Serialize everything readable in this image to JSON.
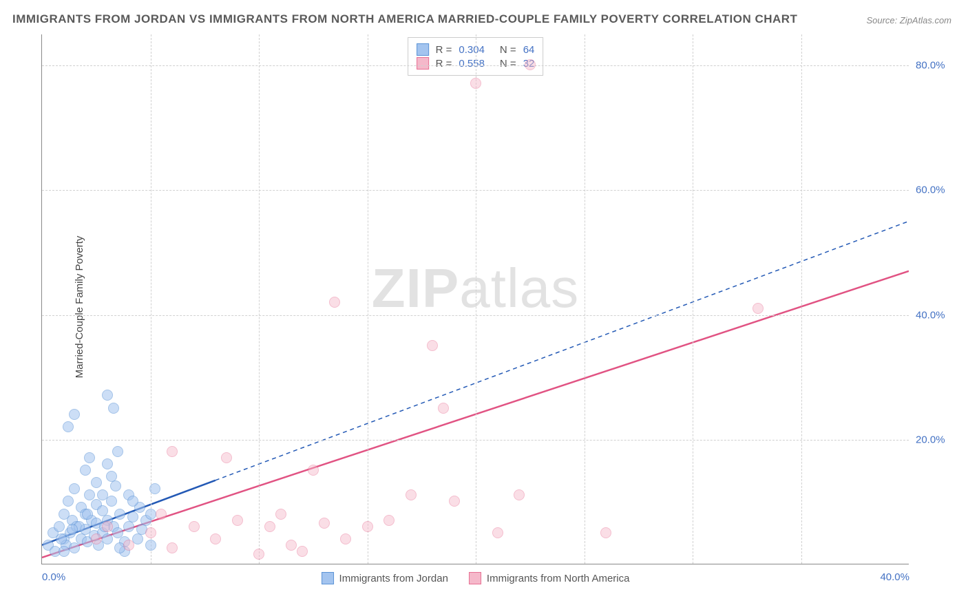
{
  "title": "IMMIGRANTS FROM JORDAN VS IMMIGRANTS FROM NORTH AMERICA MARRIED-COUPLE FAMILY POVERTY CORRELATION CHART",
  "source": "Source: ZipAtlas.com",
  "ylabel": "Married-Couple Family Poverty",
  "watermark_zip": "ZIP",
  "watermark_atlas": "atlas",
  "xlim": [
    0,
    40
  ],
  "ylim": [
    0,
    85
  ],
  "xticks": [
    {
      "v": 0,
      "label": "0.0%"
    },
    {
      "v": 40,
      "label": "40.0%"
    }
  ],
  "yticks": [
    {
      "v": 20,
      "label": "20.0%"
    },
    {
      "v": 40,
      "label": "40.0%"
    },
    {
      "v": 60,
      "label": "60.0%"
    },
    {
      "v": 80,
      "label": "80.0%"
    }
  ],
  "xgrid": [
    5,
    10,
    15,
    20,
    25,
    30,
    35
  ],
  "series": [
    {
      "key": "jordan",
      "name": "Immigrants from Jordan",
      "fill": "#a3c4ef",
      "stroke": "#5b93d6",
      "fill_opacity": 0.55,
      "line_color": "#2359b5",
      "line_dash": "none",
      "R": "0.304",
      "N": "64",
      "reg": {
        "x1": 0,
        "y1": 3,
        "x2": 40,
        "y2": 55,
        "solid_until_x": 8
      },
      "points": [
        [
          0.3,
          3
        ],
        [
          0.5,
          5
        ],
        [
          0.6,
          2
        ],
        [
          0.8,
          6
        ],
        [
          1.0,
          4
        ],
        [
          1.0,
          8
        ],
        [
          1.1,
          3
        ],
        [
          1.2,
          10
        ],
        [
          1.3,
          5
        ],
        [
          1.4,
          7
        ],
        [
          1.5,
          2.5
        ],
        [
          1.5,
          12
        ],
        [
          1.6,
          6
        ],
        [
          1.8,
          4
        ],
        [
          1.8,
          9
        ],
        [
          2.0,
          5.5
        ],
        [
          2.0,
          8
        ],
        [
          2.1,
          3.5
        ],
        [
          2.2,
          11
        ],
        [
          2.3,
          7
        ],
        [
          2.4,
          4.5
        ],
        [
          2.5,
          6.5
        ],
        [
          2.5,
          9.5
        ],
        [
          2.6,
          3
        ],
        [
          2.8,
          5
        ],
        [
          2.8,
          8.5
        ],
        [
          3.0,
          7
        ],
        [
          3.0,
          4
        ],
        [
          3.2,
          10
        ],
        [
          3.3,
          6
        ],
        [
          3.4,
          12.5
        ],
        [
          3.5,
          5
        ],
        [
          3.6,
          8
        ],
        [
          3.8,
          3.5
        ],
        [
          3.8,
          2
        ],
        [
          4.0,
          6
        ],
        [
          4.0,
          11
        ],
        [
          4.2,
          7.5
        ],
        [
          4.4,
          4
        ],
        [
          4.5,
          9
        ],
        [
          4.6,
          5.5
        ],
        [
          4.8,
          7
        ],
        [
          5.0,
          8
        ],
        [
          5.0,
          3
        ],
        [
          5.2,
          12
        ],
        [
          1.2,
          22
        ],
        [
          1.5,
          24
        ],
        [
          2.0,
          15
        ],
        [
          2.2,
          17
        ],
        [
          2.5,
          13
        ],
        [
          3.0,
          16
        ],
        [
          3.2,
          14
        ],
        [
          3.5,
          18
        ],
        [
          3.0,
          27
        ],
        [
          3.3,
          25
        ],
        [
          1.0,
          2
        ],
        [
          2.8,
          11
        ],
        [
          3.6,
          2.5
        ],
        [
          4.2,
          10
        ],
        [
          1.7,
          6
        ],
        [
          0.9,
          4
        ],
        [
          1.4,
          5.5
        ],
        [
          2.1,
          8
        ],
        [
          2.9,
          6
        ]
      ]
    },
    {
      "key": "north_america",
      "name": "Immigrants from North America",
      "fill": "#f5b8ca",
      "stroke": "#e76f93",
      "fill_opacity": 0.45,
      "line_color": "#e15383",
      "line_dash": "none",
      "R": "0.558",
      "N": "32",
      "reg": {
        "x1": 0,
        "y1": 1,
        "x2": 40,
        "y2": 47,
        "solid_until_x": 40
      },
      "points": [
        [
          2.5,
          4
        ],
        [
          3.0,
          6
        ],
        [
          4.0,
          3
        ],
        [
          5.0,
          5
        ],
        [
          5.5,
          8
        ],
        [
          6.0,
          2.5
        ],
        [
          6.0,
          18
        ],
        [
          7.0,
          6
        ],
        [
          8.0,
          4
        ],
        [
          8.5,
          17
        ],
        [
          9.0,
          7
        ],
        [
          10.0,
          1.5
        ],
        [
          10.5,
          6
        ],
        [
          11.0,
          8
        ],
        [
          12.0,
          2
        ],
        [
          12.5,
          15
        ],
        [
          13.0,
          6.5
        ],
        [
          13.5,
          42
        ],
        [
          14.0,
          4
        ],
        [
          16.0,
          7
        ],
        [
          17.0,
          11
        ],
        [
          18.0,
          35
        ],
        [
          18.5,
          25
        ],
        [
          19.0,
          10
        ],
        [
          20.0,
          77
        ],
        [
          21.0,
          5
        ],
        [
          22.0,
          11
        ],
        [
          22.5,
          80
        ],
        [
          26.0,
          5
        ],
        [
          33.0,
          41
        ],
        [
          15.0,
          6
        ],
        [
          11.5,
          3
        ]
      ]
    }
  ],
  "grid_color": "#d0d0d0",
  "background_color": "#ffffff",
  "tick_color": "#4472c4"
}
